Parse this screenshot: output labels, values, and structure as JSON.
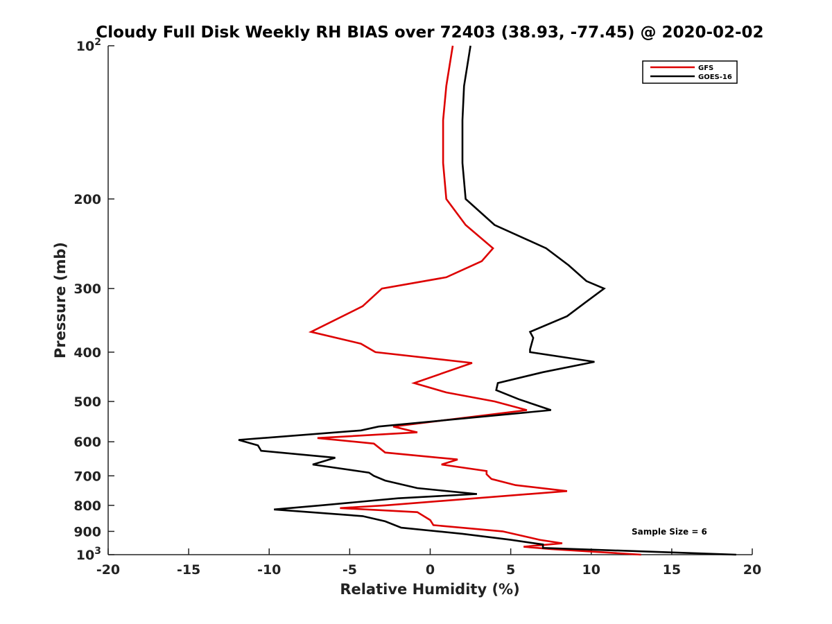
{
  "chart_data": {
    "type": "line",
    "title": "Cloudy Full Disk Weekly RH BIAS over 72403 (38.93, -77.45) @ 2020-02-02",
    "xlabel": "Relative Humidity (%)",
    "ylabel": "Pressure (mb)",
    "xlim": [
      -20,
      20
    ],
    "ylim": [
      1000,
      100
    ],
    "yscale": "log",
    "x_ticks": [
      "-20",
      "-15",
      "-10",
      "-5",
      "0",
      "5",
      "10",
      "15",
      "20"
    ],
    "y_ticks": [
      {
        "value": 100,
        "base": "10",
        "exp": "2"
      },
      {
        "value": 200,
        "label": "200"
      },
      {
        "value": 300,
        "label": "300"
      },
      {
        "value": 400,
        "label": "400"
      },
      {
        "value": 500,
        "label": "500"
      },
      {
        "value": 600,
        "label": "600"
      },
      {
        "value": 700,
        "label": "700"
      },
      {
        "value": 800,
        "label": "800"
      },
      {
        "value": 900,
        "label": "900"
      },
      {
        "value": 1000,
        "base": "10",
        "exp": "3"
      }
    ],
    "legend_position": "top-right",
    "grid": false,
    "series": [
      {
        "name": "GFS",
        "color": "#dd0000",
        "points": [
          {
            "x": 1.4,
            "p": 100
          },
          {
            "x": 1.0,
            "p": 120
          },
          {
            "x": 0.8,
            "p": 140
          },
          {
            "x": 0.8,
            "p": 170
          },
          {
            "x": 1.0,
            "p": 200
          },
          {
            "x": 2.2,
            "p": 225
          },
          {
            "x": 3.9,
            "p": 250
          },
          {
            "x": 3.2,
            "p": 265
          },
          {
            "x": 1.0,
            "p": 285
          },
          {
            "x": -3.0,
            "p": 300
          },
          {
            "x": -4.2,
            "p": 325
          },
          {
            "x": -7.4,
            "p": 365
          },
          {
            "x": -4.3,
            "p": 385
          },
          {
            "x": -3.4,
            "p": 400
          },
          {
            "x": 2.6,
            "p": 420
          },
          {
            "x": -1.0,
            "p": 460
          },
          {
            "x": 1.0,
            "p": 480
          },
          {
            "x": 4.0,
            "p": 500
          },
          {
            "x": 6.0,
            "p": 520
          },
          {
            "x": -2.3,
            "p": 560
          },
          {
            "x": -0.8,
            "p": 575
          },
          {
            "x": -7.0,
            "p": 590
          },
          {
            "x": -3.5,
            "p": 605
          },
          {
            "x": -2.8,
            "p": 630
          },
          {
            "x": 1.7,
            "p": 650
          },
          {
            "x": 0.7,
            "p": 665
          },
          {
            "x": 3.5,
            "p": 685
          },
          {
            "x": 3.5,
            "p": 695
          },
          {
            "x": 3.8,
            "p": 710
          },
          {
            "x": 5.3,
            "p": 730
          },
          {
            "x": 8.5,
            "p": 750
          },
          {
            "x": -2.8,
            "p": 800
          },
          {
            "x": -5.6,
            "p": 810
          },
          {
            "x": -0.8,
            "p": 825
          },
          {
            "x": 0.0,
            "p": 855
          },
          {
            "x": 0.2,
            "p": 875
          },
          {
            "x": 4.5,
            "p": 900
          },
          {
            "x": 6.8,
            "p": 935
          },
          {
            "x": 8.2,
            "p": 950
          },
          {
            "x": 5.8,
            "p": 965
          },
          {
            "x": 7.5,
            "p": 975
          },
          {
            "x": 13.1,
            "p": 1000
          }
        ]
      },
      {
        "name": "GOES-16",
        "color": "#000000",
        "points": [
          {
            "x": 2.5,
            "p": 100
          },
          {
            "x": 2.1,
            "p": 120
          },
          {
            "x": 2.0,
            "p": 140
          },
          {
            "x": 2.0,
            "p": 170
          },
          {
            "x": 2.2,
            "p": 200
          },
          {
            "x": 4.0,
            "p": 225
          },
          {
            "x": 7.2,
            "p": 250
          },
          {
            "x": 8.6,
            "p": 270
          },
          {
            "x": 9.7,
            "p": 290
          },
          {
            "x": 10.8,
            "p": 300
          },
          {
            "x": 9.6,
            "p": 320
          },
          {
            "x": 8.5,
            "p": 340
          },
          {
            "x": 6.2,
            "p": 365
          },
          {
            "x": 6.4,
            "p": 375
          },
          {
            "x": 6.2,
            "p": 395
          },
          {
            "x": 6.2,
            "p": 400
          },
          {
            "x": 10.2,
            "p": 418
          },
          {
            "x": 7.0,
            "p": 438
          },
          {
            "x": 4.2,
            "p": 460
          },
          {
            "x": 4.1,
            "p": 475
          },
          {
            "x": 5.5,
            "p": 495
          },
          {
            "x": 7.5,
            "p": 520
          },
          {
            "x": -3.2,
            "p": 560
          },
          {
            "x": -4.3,
            "p": 570
          },
          {
            "x": -11.9,
            "p": 595
          },
          {
            "x": -10.7,
            "p": 610
          },
          {
            "x": -10.5,
            "p": 625
          },
          {
            "x": -5.9,
            "p": 645
          },
          {
            "x": -7.3,
            "p": 665
          },
          {
            "x": -3.8,
            "p": 690
          },
          {
            "x": -3.5,
            "p": 700
          },
          {
            "x": -2.8,
            "p": 715
          },
          {
            "x": -0.8,
            "p": 740
          },
          {
            "x": 2.9,
            "p": 760
          },
          {
            "x": -2.0,
            "p": 775
          },
          {
            "x": -6.8,
            "p": 800
          },
          {
            "x": -9.7,
            "p": 815
          },
          {
            "x": -4.2,
            "p": 840
          },
          {
            "x": -2.8,
            "p": 860
          },
          {
            "x": -1.8,
            "p": 885
          },
          {
            "x": 2.0,
            "p": 910
          },
          {
            "x": 5.0,
            "p": 935
          },
          {
            "x": 7.0,
            "p": 955
          },
          {
            "x": 7.0,
            "p": 970
          },
          {
            "x": 19.0,
            "p": 1000
          }
        ]
      }
    ],
    "annotations": [
      {
        "text": "Sample Size = 6",
        "x": 14.2,
        "p": 895
      }
    ]
  }
}
